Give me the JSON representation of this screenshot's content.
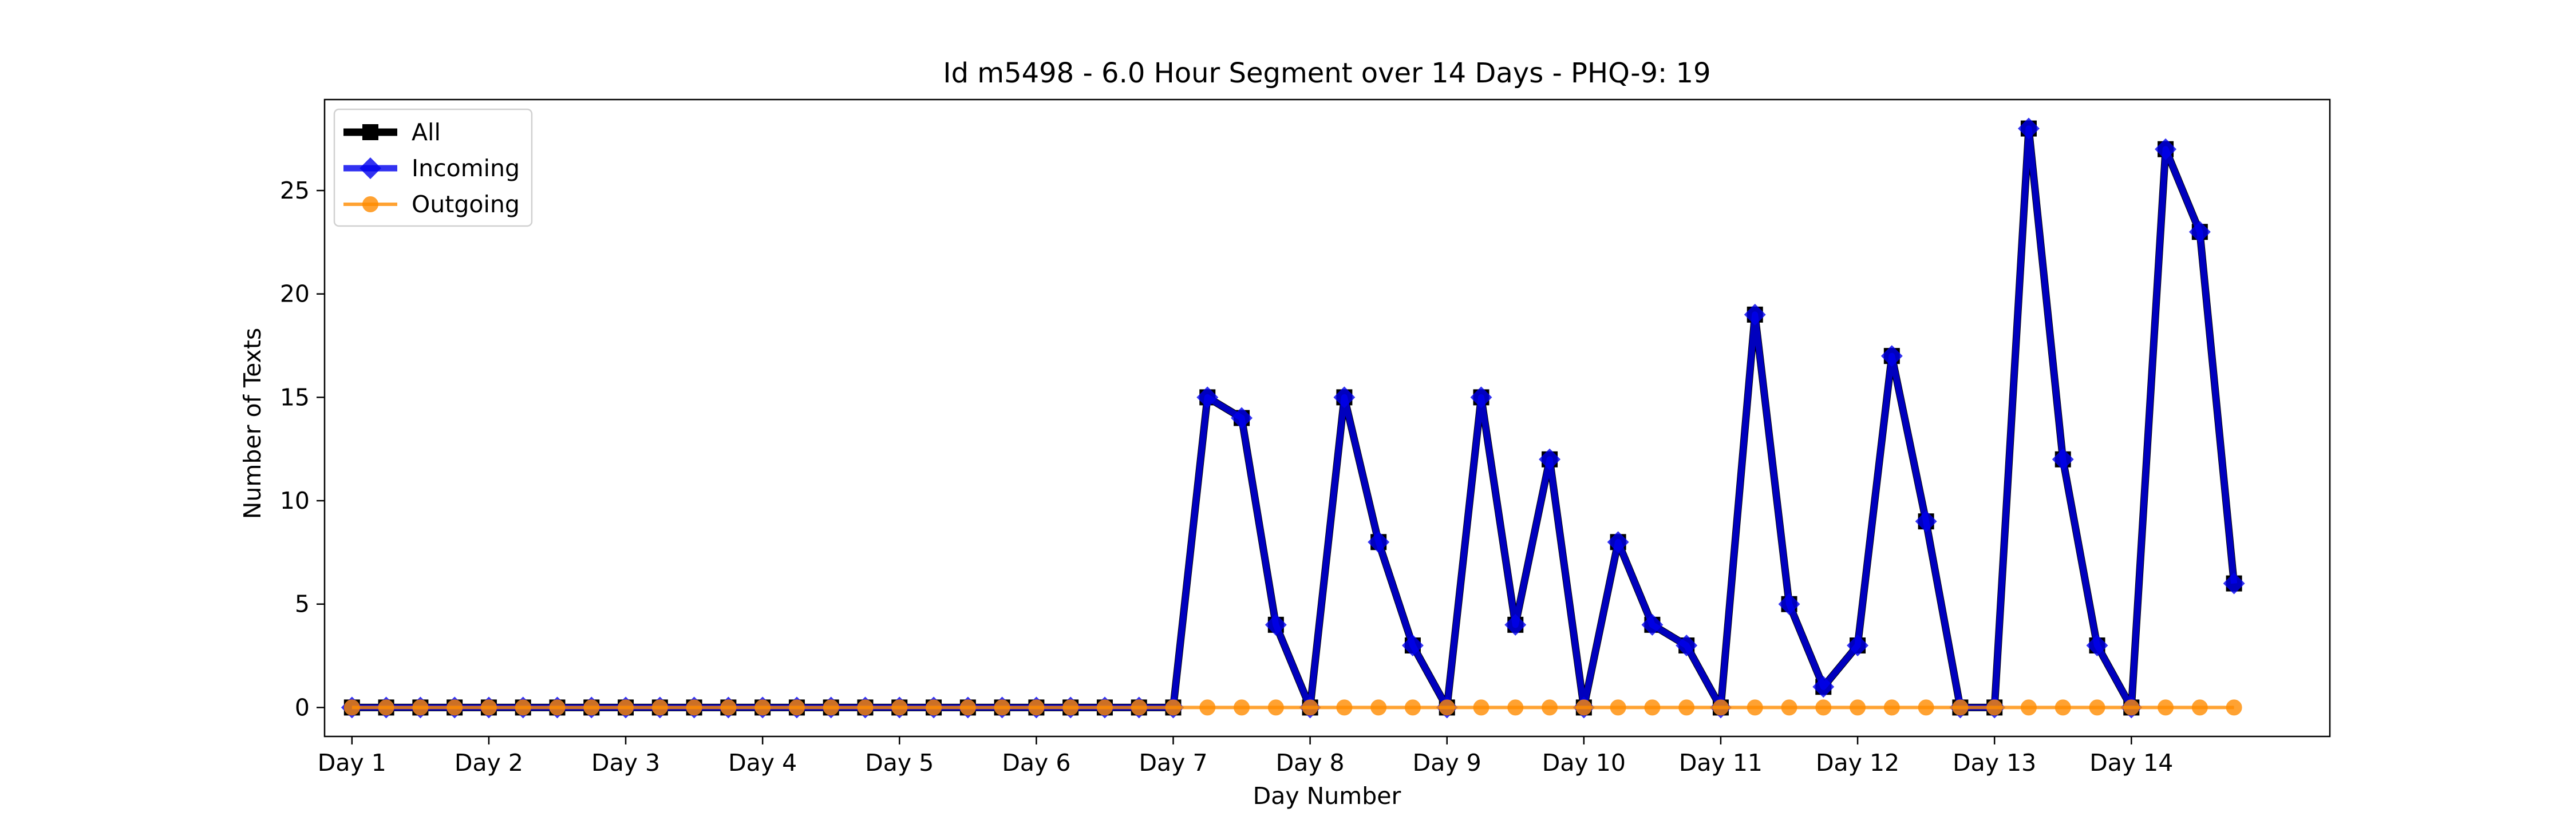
{
  "chart_data": {
    "type": "line",
    "title": "Id m5498 - 6.0 Hour Segment over 14 Days - PHQ-9: 19",
    "xlabel": "Day Number",
    "ylabel": "Number of Texts",
    "xlim": [
      -0.8,
      57.8
    ],
    "ylim": [
      -1.4,
      29.4
    ],
    "y_ticks": [
      0,
      5,
      10,
      15,
      20,
      25
    ],
    "x_ticks": [
      {
        "x": 0,
        "label": "Day 1"
      },
      {
        "x": 4,
        "label": "Day 2"
      },
      {
        "x": 8,
        "label": "Day 3"
      },
      {
        "x": 12,
        "label": "Day 4"
      },
      {
        "x": 16,
        "label": "Day 5"
      },
      {
        "x": 20,
        "label": "Day 6"
      },
      {
        "x": 24,
        "label": "Day 7"
      },
      {
        "x": 28,
        "label": "Day 8"
      },
      {
        "x": 32,
        "label": "Day 9"
      },
      {
        "x": 36,
        "label": "Day 10"
      },
      {
        "x": 40,
        "label": "Day 11"
      },
      {
        "x": 44,
        "label": "Day 12"
      },
      {
        "x": 48,
        "label": "Day 13"
      },
      {
        "x": 52,
        "label": "Day 14"
      }
    ],
    "grid": false,
    "legend_position": "top-left",
    "x": [
      0,
      1,
      2,
      3,
      4,
      5,
      6,
      7,
      8,
      9,
      10,
      11,
      12,
      13,
      14,
      15,
      16,
      17,
      18,
      19,
      20,
      21,
      22,
      23,
      24,
      25,
      26,
      27,
      28,
      29,
      30,
      31,
      32,
      33,
      34,
      35,
      36,
      37,
      38,
      39,
      40,
      41,
      42,
      43,
      44,
      45,
      46,
      47,
      48,
      49,
      50,
      51,
      52,
      53,
      54,
      55
    ],
    "series": [
      {
        "name": "All",
        "color": "#000000",
        "marker": "square",
        "values": [
          0,
          0,
          0,
          0,
          0,
          0,
          0,
          0,
          0,
          0,
          0,
          0,
          0,
          0,
          0,
          0,
          0,
          0,
          0,
          0,
          0,
          0,
          0,
          0,
          0,
          15,
          14,
          4,
          0,
          15,
          8,
          3,
          0,
          15,
          4,
          12,
          0,
          8,
          4,
          3,
          0,
          19,
          5,
          1,
          3,
          17,
          9,
          0,
          0,
          28,
          12,
          3,
          0,
          27,
          23,
          6
        ]
      },
      {
        "name": "Incoming",
        "color": "#0000ee",
        "marker": "diamond",
        "values": [
          0,
          0,
          0,
          0,
          0,
          0,
          0,
          0,
          0,
          0,
          0,
          0,
          0,
          0,
          0,
          0,
          0,
          0,
          0,
          0,
          0,
          0,
          0,
          0,
          0,
          15,
          14,
          4,
          0,
          15,
          8,
          3,
          0,
          15,
          4,
          12,
          0,
          8,
          4,
          3,
          0,
          19,
          5,
          1,
          3,
          17,
          9,
          0,
          0,
          28,
          12,
          3,
          0,
          27,
          23,
          6
        ]
      },
      {
        "name": "Outgoing",
        "color": "#ff8c00",
        "marker": "circle",
        "values": [
          0,
          0,
          0,
          0,
          0,
          0,
          0,
          0,
          0,
          0,
          0,
          0,
          0,
          0,
          0,
          0,
          0,
          0,
          0,
          0,
          0,
          0,
          0,
          0,
          0,
          0,
          0,
          0,
          0,
          0,
          0,
          0,
          0,
          0,
          0,
          0,
          0,
          0,
          0,
          0,
          0,
          0,
          0,
          0,
          0,
          0,
          0,
          0,
          0,
          0,
          0,
          0,
          0,
          0,
          0,
          0
        ]
      }
    ]
  }
}
